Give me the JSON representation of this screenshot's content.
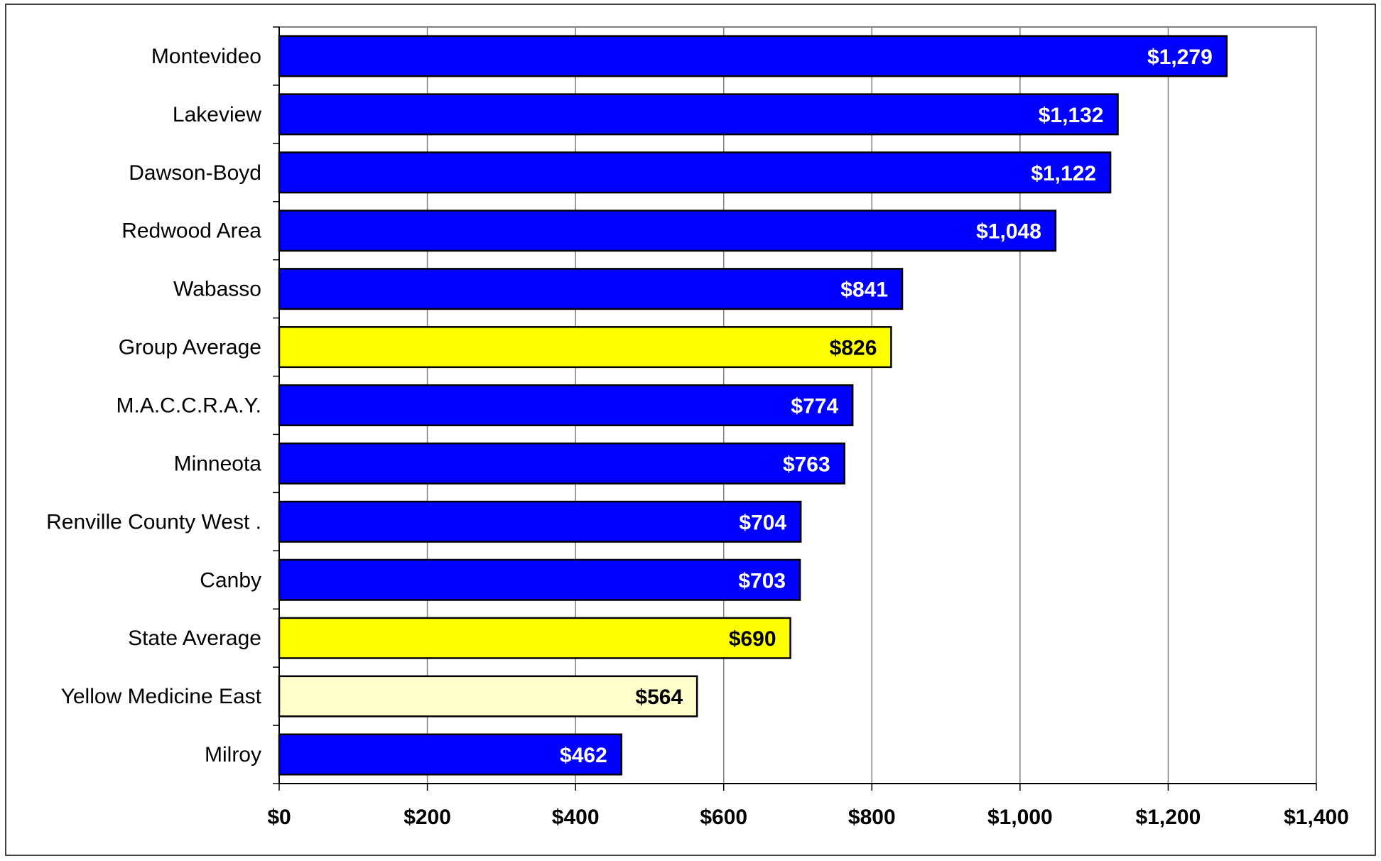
{
  "chart_data": {
    "type": "bar",
    "orientation": "horizontal",
    "title": "",
    "xlabel": "",
    "ylabel": "",
    "xlim": [
      0,
      1400
    ],
    "x_ticks": [
      0,
      200,
      400,
      600,
      800,
      1000,
      1200,
      1400
    ],
    "x_tick_labels": [
      "$0",
      "$200",
      "$400",
      "$600",
      "$800",
      "$1,000",
      "$1,200",
      "$1,400"
    ],
    "grid": "vertical",
    "legend": "none",
    "categories": [
      "Montevideo",
      "Lakeview",
      "Dawson-Boyd",
      "Redwood Area",
      "Wabasso",
      "Group Average",
      "M.A.C.C.R.A.Y.",
      "Minneota",
      "Renville County West .",
      "Canby",
      "State Average",
      "Yellow Medicine East",
      "Milroy"
    ],
    "values": [
      1279,
      1132,
      1122,
      1048,
      841,
      826,
      774,
      763,
      704,
      703,
      690,
      564,
      462
    ],
    "data_labels": [
      "$1,279",
      "$1,132",
      "$1,122",
      "$1,048",
      "$841",
      "$826",
      "$774",
      "$763",
      "$704",
      "$703",
      "$690",
      "$564",
      "$462"
    ],
    "bar_colors": [
      "#0000ff",
      "#0000ff",
      "#0000ff",
      "#0000ff",
      "#0000ff",
      "#ffff00",
      "#0000ff",
      "#0000ff",
      "#0000ff",
      "#0000ff",
      "#ffff00",
      "#ffffcc",
      "#0000ff"
    ],
    "label_colors": [
      "#ffffff",
      "#ffffff",
      "#ffffff",
      "#ffffff",
      "#ffffff",
      "#000000",
      "#ffffff",
      "#ffffff",
      "#ffffff",
      "#ffffff",
      "#000000",
      "#000000",
      "#ffffff"
    ]
  }
}
